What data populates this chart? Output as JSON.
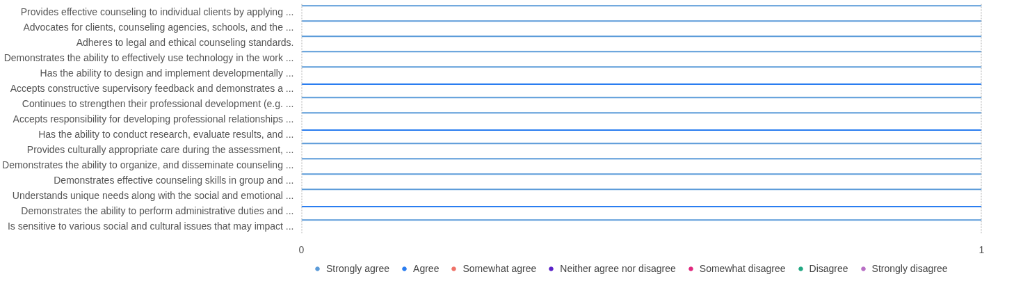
{
  "chart_data": {
    "type": "bar",
    "orientation": "horizontal",
    "categories": [
      "Provides effective counseling to individual clients by applying ...",
      "Advocates for clients, counseling agencies, schools, and the ...",
      "Adheres to legal and ethical counseling standards.",
      "Demonstrates the ability to effectively use technology in the work ...",
      "Has the ability to design and implement developmentally ...",
      "Accepts constructive supervisory feedback and demonstrates a ...",
      "Continues to strengthen their professional development (e.g. ...",
      "Accepts responsibility for developing professional relationships ...",
      "Has the ability to conduct research, evaluate results, and ...",
      "Provides culturally appropriate care during the assessment, ...",
      "Demonstrates the ability to organize, and disseminate counseling ...",
      "Demonstrates effective counseling skills in group and ...",
      "Understands unique needs along with the social and emotional ...",
      "Demonstrates the ability to perform administrative duties and ...",
      "Is sensitive to various social and cultural issues that may impact ..."
    ],
    "series": [
      {
        "name": "Strongly agree",
        "color": "#5b9bd9",
        "values": [
          1,
          1,
          1,
          1,
          1,
          0,
          1,
          1,
          0,
          1,
          1,
          1,
          1,
          0,
          1
        ]
      },
      {
        "name": "Agree",
        "color": "#2a7df0",
        "values": [
          0,
          0,
          0,
          0,
          0,
          1,
          0,
          0,
          1,
          0,
          0,
          0,
          0,
          1,
          0
        ]
      },
      {
        "name": "Somewhat agree",
        "color": "#ef7268",
        "values": [
          0,
          0,
          0,
          0,
          0,
          0,
          0,
          0,
          0,
          0,
          0,
          0,
          0,
          0,
          0
        ]
      },
      {
        "name": "Neither agree nor disagree",
        "color": "#5b22c8",
        "values": [
          0,
          0,
          0,
          0,
          0,
          0,
          0,
          0,
          0,
          0,
          0,
          0,
          0,
          0,
          0
        ]
      },
      {
        "name": "Somewhat disagree",
        "color": "#e0287e",
        "values": [
          0,
          0,
          0,
          0,
          0,
          0,
          0,
          0,
          0,
          0,
          0,
          0,
          0,
          0,
          0
        ]
      },
      {
        "name": "Disagree",
        "color": "#22a883",
        "values": [
          0,
          0,
          0,
          0,
          0,
          0,
          0,
          0,
          0,
          0,
          0,
          0,
          0,
          0,
          0
        ]
      },
      {
        "name": "Strongly disagree",
        "color": "#b86fc5",
        "values": [
          0,
          0,
          0,
          0,
          0,
          0,
          0,
          0,
          0,
          0,
          0,
          0,
          0,
          0,
          0
        ]
      }
    ],
    "xlim": [
      0,
      1
    ],
    "xticks": [
      0,
      1
    ],
    "grid": "x",
    "legend": "bottom"
  }
}
